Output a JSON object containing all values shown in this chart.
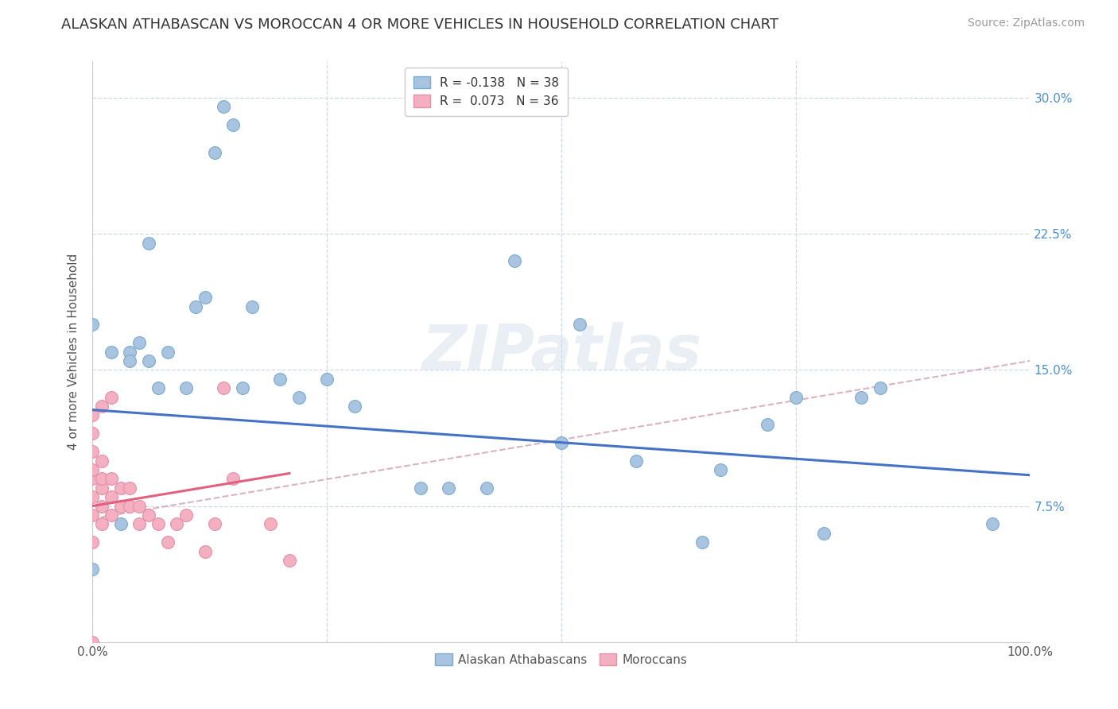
{
  "title": "ALASKAN ATHABASCAN VS MOROCCAN 4 OR MORE VEHICLES IN HOUSEHOLD CORRELATION CHART",
  "source": "Source: ZipAtlas.com",
  "ylabel": "4 or more Vehicles in Household",
  "xlabel": "",
  "xlim": [
    0,
    1.0
  ],
  "ylim": [
    0,
    0.32
  ],
  "xticks": [
    0.0,
    0.25,
    0.5,
    0.75,
    1.0
  ],
  "xticklabels": [
    "0.0%",
    "",
    "",
    "",
    "100.0%"
  ],
  "yticks": [
    0.0,
    0.075,
    0.15,
    0.225,
    0.3
  ],
  "yticklabels_right": [
    "",
    "7.5%",
    "15.0%",
    "22.5%",
    "30.0%"
  ],
  "legend_entries": [
    {
      "label": "R = -0.138   N = 38",
      "color": "#aec6e8",
      "text_color": "#3070b0"
    },
    {
      "label": "R =  0.073   N = 36",
      "color": "#f4b8c8",
      "text_color": "#3070b0"
    }
  ],
  "legend_labels_bottom": [
    "Alaskan Athabascans",
    "Moroccans"
  ],
  "watermark": "ZIPatlas",
  "blue_scatter": [
    [
      0.0,
      0.175
    ],
    [
      0.02,
      0.16
    ],
    [
      0.04,
      0.16
    ],
    [
      0.04,
      0.155
    ],
    [
      0.05,
      0.165
    ],
    [
      0.06,
      0.22
    ],
    [
      0.06,
      0.155
    ],
    [
      0.07,
      0.14
    ],
    [
      0.08,
      0.16
    ],
    [
      0.1,
      0.14
    ],
    [
      0.11,
      0.185
    ],
    [
      0.12,
      0.19
    ],
    [
      0.13,
      0.27
    ],
    [
      0.14,
      0.295
    ],
    [
      0.15,
      0.285
    ],
    [
      0.16,
      0.14
    ],
    [
      0.17,
      0.185
    ],
    [
      0.2,
      0.145
    ],
    [
      0.22,
      0.135
    ],
    [
      0.25,
      0.145
    ],
    [
      0.28,
      0.13
    ],
    [
      0.35,
      0.085
    ],
    [
      0.38,
      0.085
    ],
    [
      0.42,
      0.085
    ],
    [
      0.5,
      0.11
    ],
    [
      0.52,
      0.175
    ],
    [
      0.58,
      0.1
    ],
    [
      0.67,
      0.095
    ],
    [
      0.72,
      0.12
    ],
    [
      0.75,
      0.135
    ],
    [
      0.78,
      0.06
    ],
    [
      0.82,
      0.135
    ],
    [
      0.84,
      0.14
    ],
    [
      0.03,
      0.065
    ],
    [
      0.45,
      0.21
    ],
    [
      0.65,
      0.055
    ],
    [
      0.96,
      0.065
    ],
    [
      0.0,
      0.04
    ]
  ],
  "pink_scatter": [
    [
      0.0,
      0.07
    ],
    [
      0.0,
      0.08
    ],
    [
      0.0,
      0.09
    ],
    [
      0.0,
      0.095
    ],
    [
      0.0,
      0.105
    ],
    [
      0.0,
      0.115
    ],
    [
      0.0,
      0.125
    ],
    [
      0.0,
      0.055
    ],
    [
      0.01,
      0.065
    ],
    [
      0.01,
      0.075
    ],
    [
      0.01,
      0.085
    ],
    [
      0.01,
      0.09
    ],
    [
      0.01,
      0.1
    ],
    [
      0.02,
      0.07
    ],
    [
      0.02,
      0.08
    ],
    [
      0.02,
      0.09
    ],
    [
      0.03,
      0.075
    ],
    [
      0.03,
      0.085
    ],
    [
      0.04,
      0.075
    ],
    [
      0.04,
      0.085
    ],
    [
      0.05,
      0.065
    ],
    [
      0.05,
      0.075
    ],
    [
      0.06,
      0.07
    ],
    [
      0.07,
      0.065
    ],
    [
      0.08,
      0.055
    ],
    [
      0.09,
      0.065
    ],
    [
      0.1,
      0.07
    ],
    [
      0.12,
      0.05
    ],
    [
      0.13,
      0.065
    ],
    [
      0.15,
      0.09
    ],
    [
      0.19,
      0.065
    ],
    [
      0.0,
      0.0
    ],
    [
      0.02,
      0.135
    ],
    [
      0.01,
      0.13
    ],
    [
      0.14,
      0.14
    ],
    [
      0.21,
      0.045
    ]
  ],
  "blue_line_x": [
    0.0,
    1.0
  ],
  "blue_line_y": [
    0.128,
    0.092
  ],
  "pink_line_x": [
    0.0,
    0.21
  ],
  "pink_line_y": [
    0.075,
    0.093
  ],
  "gray_line_x": [
    0.0,
    1.0
  ],
  "gray_line_y": [
    0.068,
    0.155
  ],
  "blue_line_color": "#4472c4",
  "pink_line_color": "#e06080",
  "gray_line_color": "#d0a0b0",
  "blue_marker_color": "#a8c4e0",
  "pink_marker_color": "#f4b0c0",
  "blue_marker_edge": "#7aabcc",
  "pink_marker_edge": "#e090a8",
  "grid_color": "#d0d8e8",
  "background_color": "#ffffff",
  "title_fontsize": 13,
  "axis_label_fontsize": 11,
  "tick_fontsize": 11,
  "source_fontsize": 10,
  "legend_fontsize": 11
}
